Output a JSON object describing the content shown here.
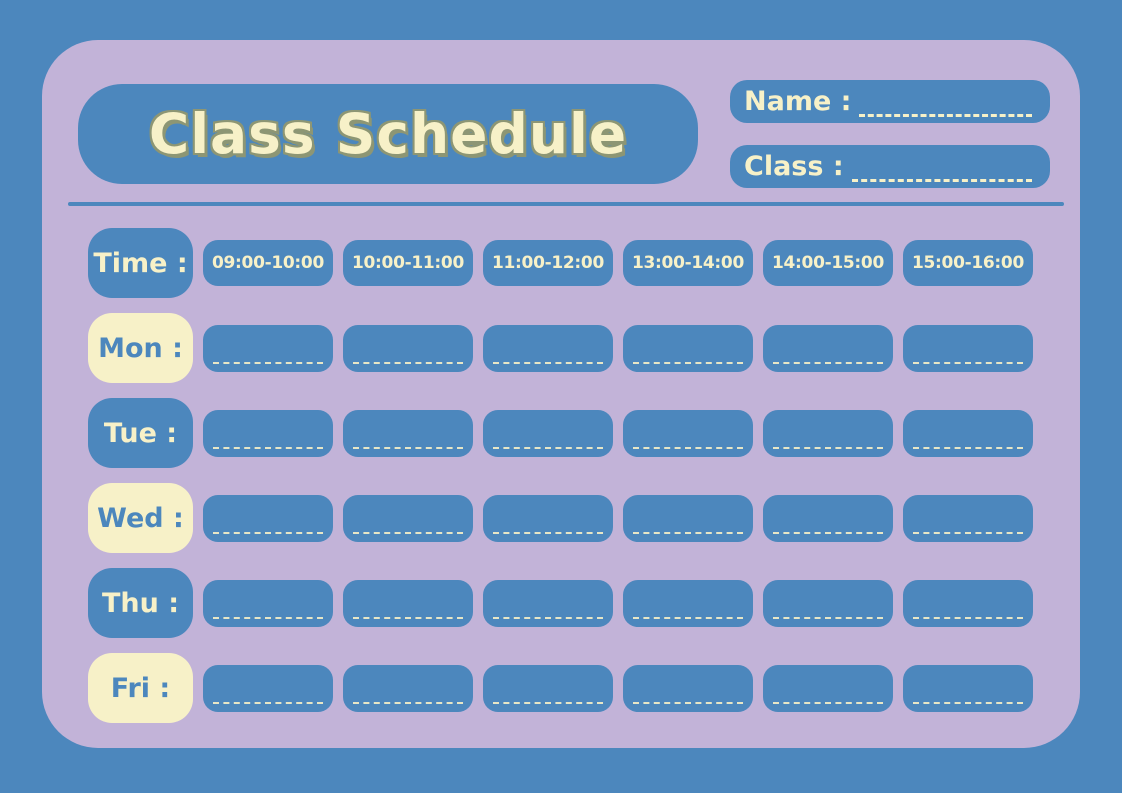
{
  "palette": {
    "background_blue": "#4C87BD",
    "card_lavender": "#C2B3D8",
    "cream": "#F7F1C8",
    "title_outline_olive": "#8D9674"
  },
  "header": {
    "title": "Class Schedule",
    "name_label": "Name :",
    "name_value": "",
    "class_label": "Class :",
    "class_value": ""
  },
  "table": {
    "time_label": "Time :",
    "time_slots": [
      "09:00-10:00",
      "10:00-11:00",
      "11:00-12:00",
      "13:00-14:00",
      "14:00-15:00",
      "15:00-16:00"
    ],
    "days": [
      {
        "label": "Mon :",
        "cells": [
          "",
          "",
          "",
          "",
          "",
          ""
        ]
      },
      {
        "label": "Tue :",
        "cells": [
          "",
          "",
          "",
          "",
          "",
          ""
        ]
      },
      {
        "label": "Wed :",
        "cells": [
          "",
          "",
          "",
          "",
          "",
          ""
        ]
      },
      {
        "label": "Thu :",
        "cells": [
          "",
          "",
          "",
          "",
          "",
          ""
        ]
      },
      {
        "label": "Fri :",
        "cells": [
          "",
          "",
          "",
          "",
          "",
          ""
        ]
      }
    ]
  }
}
